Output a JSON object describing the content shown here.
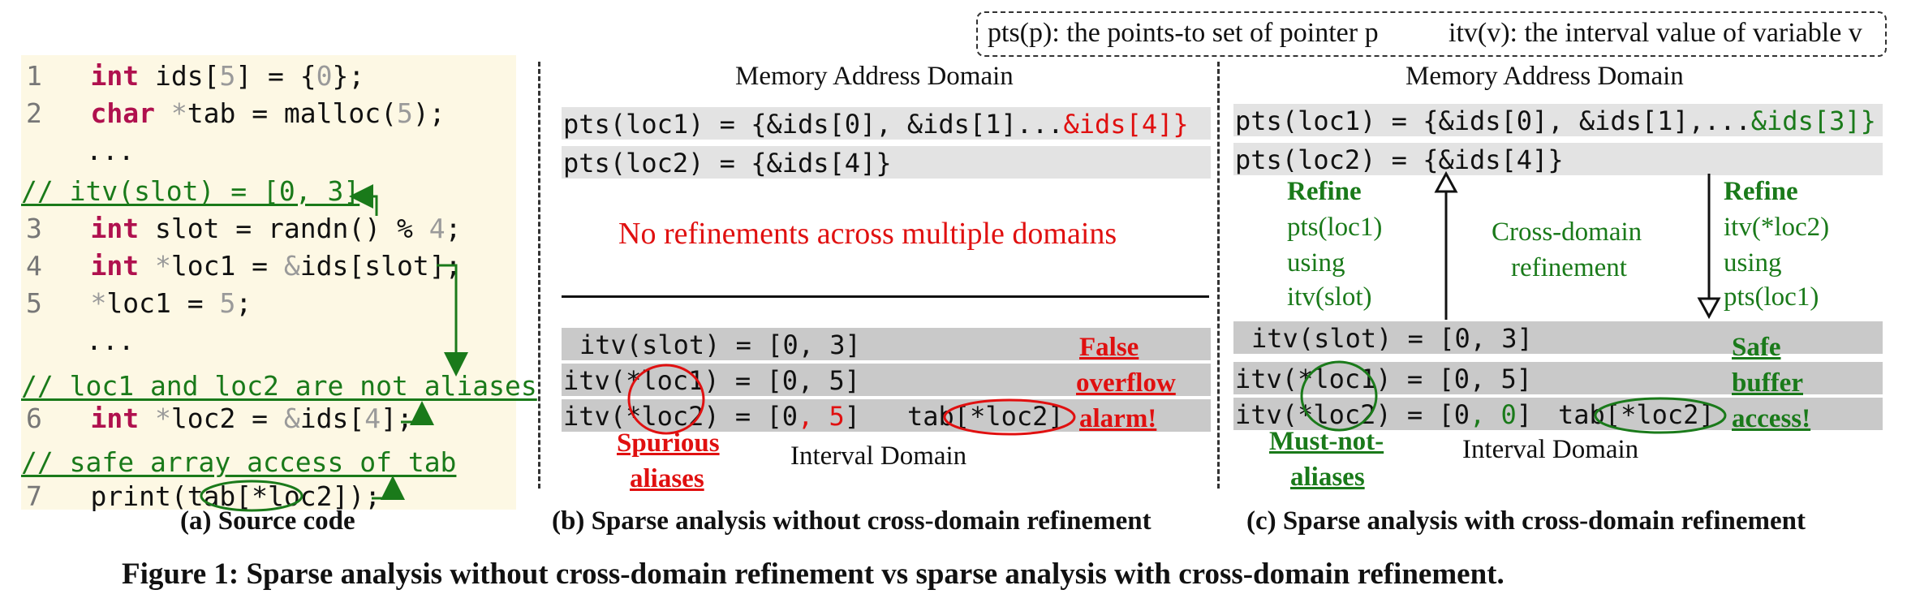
{
  "legend": {
    "pts": "pts(p): the points-to set of pointer p",
    "itv": "itv(v): the interval value of variable v"
  },
  "code": {
    "l1": {
      "num": "1",
      "kw": "int",
      "a": " ids[",
      "b": "5",
      "c": "] = {",
      "d": "0",
      "e": "};"
    },
    "l2": {
      "num": "2",
      "kw": "char",
      "a": " ",
      "b": "*",
      "c": "tab = malloc(",
      "d": "5",
      "e": ");"
    },
    "dots1": "...",
    "c1": "// itv(slot) = [0, 3]",
    "l3": {
      "num": "3",
      "kw": "int",
      "a": " slot = randn() % ",
      "b": "4",
      "c": ";"
    },
    "l4": {
      "num": "4",
      "kw": "int",
      "a": " ",
      "b": "*",
      "c": "loc1 = ",
      "d": "&",
      "e": "ids[slot];"
    },
    "l5": {
      "num": "5",
      "a": "*",
      "b": "loc1 = ",
      "c": "5",
      "d": ";"
    },
    "dots2": "...",
    "c2": "// loc1 and loc2 are not aliases",
    "l6": {
      "num": "6",
      "kw": "int",
      "a": " ",
      "b": "*",
      "c": "loc2 = ",
      "d": "&",
      "e": "ids[",
      "f": "4",
      "g": "];"
    },
    "c3": "// safe array access of tab",
    "l7": {
      "num": "7",
      "a": "print(tab[",
      "b": "*loc2",
      "c": "]);"
    }
  },
  "panel_b": {
    "domain_title": "Memory Address Domain",
    "pts1_a": "pts(loc1) = {&ids[0], &ids[1]...",
    "pts1_b": "&ids[4]}",
    "pts2": "pts(loc2) = {&ids[4]}",
    "no_ref": "No refinements across multiple domains",
    "itv_slot": "itv(slot) = [0, 3]",
    "itv_loc1": "itv(*loc1) = [0, 5]",
    "itv_loc2_a": "itv(*loc2) = [0",
    "itv_loc2_b": ", 5",
    "itv_loc2_c": "]",
    "tab_a": "tab[",
    "tab_b": "*loc2",
    "tab_c": "]",
    "spurious1": "Spurious",
    "spurious2": "aliases",
    "interval_domain": "Interval Domain",
    "false1": "False",
    "false2": "overflow",
    "false3": "alarm!",
    "caption": "(b) Sparse analysis without cross-domain refinement"
  },
  "panel_c": {
    "domain_title": "Memory Address Domain",
    "pts1_a": "pts(loc1) = {&ids[0], &ids[1],...",
    "pts1_b": "&ids[3]}",
    "pts2": "pts(loc2) = {&ids[4]}",
    "refine_left": [
      "Refine",
      "pts(loc1)",
      "using",
      "itv(slot)"
    ],
    "cross1": "Cross-domain",
    "cross2": "refinement",
    "refine_right": [
      "Refine",
      "itv(*loc2)",
      "using",
      "pts(loc1)"
    ],
    "itv_slot": "itv(slot) = [0, 3]",
    "itv_loc1": "itv(*loc1) = [0, 5]",
    "itv_loc2_a": "itv(*loc2) = [0",
    "itv_loc2_b": ", 0",
    "itv_loc2_c": "]",
    "tab_a": "tab[",
    "tab_b": "*loc2",
    "tab_c": "]",
    "must1": "Must-not-",
    "must2": "aliases",
    "interval_domain": "Interval Domain",
    "safe1": "Safe",
    "safe2": "buffer",
    "safe3": "access!",
    "caption": "(c) Sparse analysis with cross-domain refinement"
  },
  "caption_a": "(a) Source code",
  "figure_caption": "Figure 1: Sparse analysis without cross-domain refinement vs sparse analysis with cross-domain refinement."
}
